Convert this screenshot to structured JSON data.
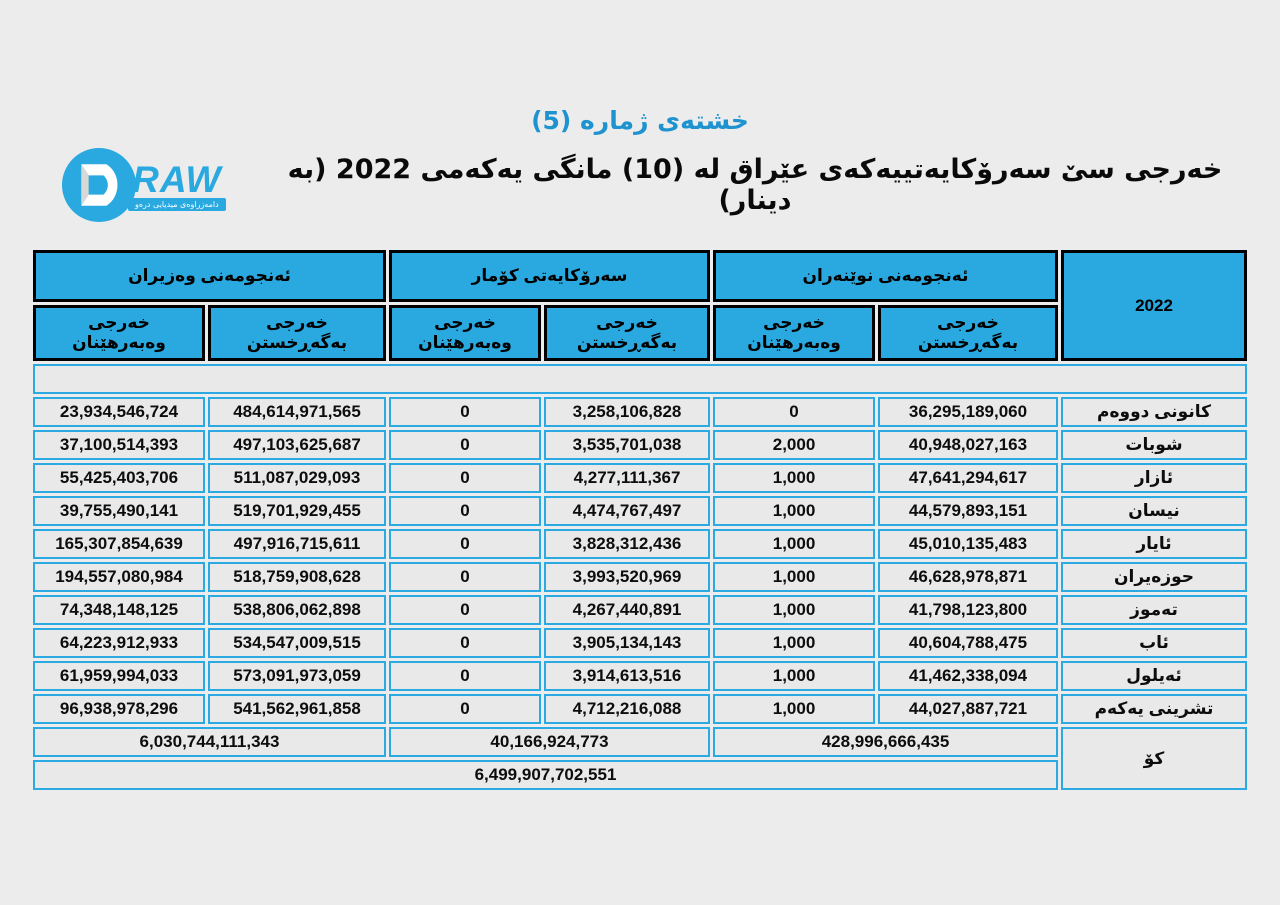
{
  "page": {
    "title": "خشتەی ژمارە (5)",
    "subtitle": "خەرجی سێ سەرۆکایەتییەکەی عێراق لە (10) مانگی یەکەمی 2022 (بە دینار)"
  },
  "logo": {
    "name": "DRAW",
    "raw_text": "RAW",
    "tagline": "دامەزراوەی میدیایی درەو"
  },
  "colors": {
    "page_bg": "#ECECEC",
    "cell_bg": "#E9E9E9",
    "header_blue": "#29A9E0",
    "cell_border_blue": "#2BAAE2",
    "title_blue": "#1E93D0",
    "header_border": "#000000"
  },
  "table": {
    "year": "2022",
    "total_label": "کۆ",
    "grand_total": "6,499,907,702,551",
    "groups": [
      {
        "name": "ئەنجومەنی نوێنەران",
        "operating_label": "خەرجی بەگەڕخستن",
        "investment_label": "خەرجی وەبەرهێنان",
        "total": "428,996,666,435"
      },
      {
        "name": "سەرۆکایەتی کۆمار",
        "operating_label": "خەرجی بەگەڕخستن",
        "investment_label": "خەرجی وەبەرهێنان",
        "total": "40,166,924,773"
      },
      {
        "name": "ئەنجومەنی وەزیران",
        "operating_label": "خەرجی بەگەڕخستن",
        "investment_label": "خەرجی وەبەرهێنان",
        "total": "6,030,744,111,343"
      }
    ],
    "rows": [
      {
        "month": "کانونی دووەم",
        "rep_operating": "36,295,189,060",
        "rep_investment": "0",
        "repub_operating": "3,258,106,828",
        "repub_investment": "0",
        "min_operating": "484,614,971,565",
        "min_investment": "23,934,546,724"
      },
      {
        "month": "شوبات",
        "rep_operating": "40,948,027,163",
        "rep_investment": "2,000",
        "repub_operating": "3,535,701,038",
        "repub_investment": "0",
        "min_operating": "497,103,625,687",
        "min_investment": "37,100,514,393"
      },
      {
        "month": "ئازار",
        "rep_operating": "47,641,294,617",
        "rep_investment": "1,000",
        "repub_operating": "4,277,111,367",
        "repub_investment": "0",
        "min_operating": "511,087,029,093",
        "min_investment": "55,425,403,706"
      },
      {
        "month": "نیسان",
        "rep_operating": "44,579,893,151",
        "rep_investment": "1,000",
        "repub_operating": "4,474,767,497",
        "repub_investment": "0",
        "min_operating": "519,701,929,455",
        "min_investment": "39,755,490,141"
      },
      {
        "month": "ئایار",
        "rep_operating": "45,010,135,483",
        "rep_investment": "1,000",
        "repub_operating": "3,828,312,436",
        "repub_investment": "0",
        "min_operating": "497,916,715,611",
        "min_investment": "165,307,854,639"
      },
      {
        "month": "حوزەیران",
        "rep_operating": "46,628,978,871",
        "rep_investment": "1,000",
        "repub_operating": "3,993,520,969",
        "repub_investment": "0",
        "min_operating": "518,759,908,628",
        "min_investment": "194,557,080,984"
      },
      {
        "month": "تەموز",
        "rep_operating": "41,798,123,800",
        "rep_investment": "1,000",
        "repub_operating": "4,267,440,891",
        "repub_investment": "0",
        "min_operating": "538,806,062,898",
        "min_investment": "74,348,148,125"
      },
      {
        "month": "ئاب",
        "rep_operating": "40,604,788,475",
        "rep_investment": "1,000",
        "repub_operating": "3,905,134,143",
        "repub_investment": "0",
        "min_operating": "534,547,009,515",
        "min_investment": "64,223,912,933"
      },
      {
        "month": "ئەیلول",
        "rep_operating": "41,462,338,094",
        "rep_investment": "1,000",
        "repub_operating": "3,914,613,516",
        "repub_investment": "0",
        "min_operating": "573,091,973,059",
        "min_investment": "61,959,994,033"
      },
      {
        "month": "تشرینی یەکەم",
        "rep_operating": "44,027,887,721",
        "rep_investment": "1,000",
        "repub_operating": "4,712,216,088",
        "repub_investment": "0",
        "min_operating": "541,562,961,858",
        "min_investment": "96,938,978,296"
      }
    ]
  }
}
